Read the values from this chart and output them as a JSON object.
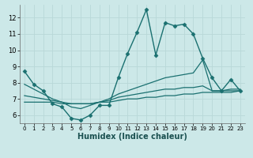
{
  "xlabel": "Humidex (Indice chaleur)",
  "ylabel": "",
  "xlim": [
    -0.5,
    23.5
  ],
  "ylim": [
    5.5,
    12.8
  ],
  "xticks": [
    0,
    1,
    2,
    3,
    4,
    5,
    6,
    7,
    8,
    9,
    10,
    11,
    12,
    13,
    14,
    15,
    16,
    17,
    18,
    19,
    20,
    21,
    22,
    23
  ],
  "yticks": [
    6,
    7,
    8,
    9,
    10,
    11,
    12
  ],
  "bg_color": "#cce8e8",
  "grid_color": "#b8d8d8",
  "line_color": "#1a7070",
  "series": [
    {
      "x": [
        0,
        1,
        2,
        3,
        4,
        5,
        6,
        7,
        8,
        9,
        10,
        11,
        12,
        13,
        14,
        15,
        16,
        17,
        18,
        19,
        20,
        21,
        22,
        23
      ],
      "y": [
        8.7,
        7.9,
        7.5,
        6.7,
        6.5,
        5.8,
        5.7,
        6.0,
        6.6,
        6.6,
        8.3,
        9.8,
        11.1,
        12.5,
        9.7,
        11.7,
        11.5,
        11.6,
        11.0,
        9.5,
        8.3,
        7.5,
        8.2,
        7.5
      ],
      "marker": "D",
      "markersize": 2.5,
      "linewidth": 1.0
    },
    {
      "x": [
        0,
        1,
        2,
        3,
        4,
        5,
        6,
        7,
        8,
        9,
        10,
        11,
        12,
        13,
        14,
        15,
        16,
        17,
        18,
        19,
        20,
        21,
        22,
        23
      ],
      "y": [
        7.9,
        7.6,
        7.3,
        7.0,
        6.8,
        6.5,
        6.4,
        6.6,
        6.8,
        7.0,
        7.3,
        7.5,
        7.7,
        7.9,
        8.1,
        8.3,
        8.4,
        8.5,
        8.6,
        9.4,
        7.5,
        7.5,
        7.6,
        7.6
      ],
      "marker": null,
      "markersize": 0,
      "linewidth": 0.9
    },
    {
      "x": [
        0,
        1,
        2,
        3,
        4,
        5,
        6,
        7,
        8,
        9,
        10,
        11,
        12,
        13,
        14,
        15,
        16,
        17,
        18,
        19,
        20,
        21,
        22,
        23
      ],
      "y": [
        7.2,
        7.1,
        7.0,
        6.9,
        6.8,
        6.7,
        6.7,
        6.7,
        6.8,
        6.9,
        7.1,
        7.2,
        7.3,
        7.4,
        7.5,
        7.6,
        7.6,
        7.7,
        7.7,
        7.8,
        7.5,
        7.5,
        7.5,
        7.5
      ],
      "marker": null,
      "markersize": 0,
      "linewidth": 0.9
    },
    {
      "x": [
        0,
        1,
        2,
        3,
        4,
        5,
        6,
        7,
        8,
        9,
        10,
        11,
        12,
        13,
        14,
        15,
        16,
        17,
        18,
        19,
        20,
        21,
        22,
        23
      ],
      "y": [
        6.8,
        6.8,
        6.8,
        6.8,
        6.7,
        6.7,
        6.7,
        6.7,
        6.8,
        6.8,
        6.9,
        7.0,
        7.0,
        7.1,
        7.1,
        7.2,
        7.2,
        7.3,
        7.3,
        7.4,
        7.4,
        7.4,
        7.4,
        7.5
      ],
      "marker": null,
      "markersize": 0,
      "linewidth": 0.9
    }
  ]
}
